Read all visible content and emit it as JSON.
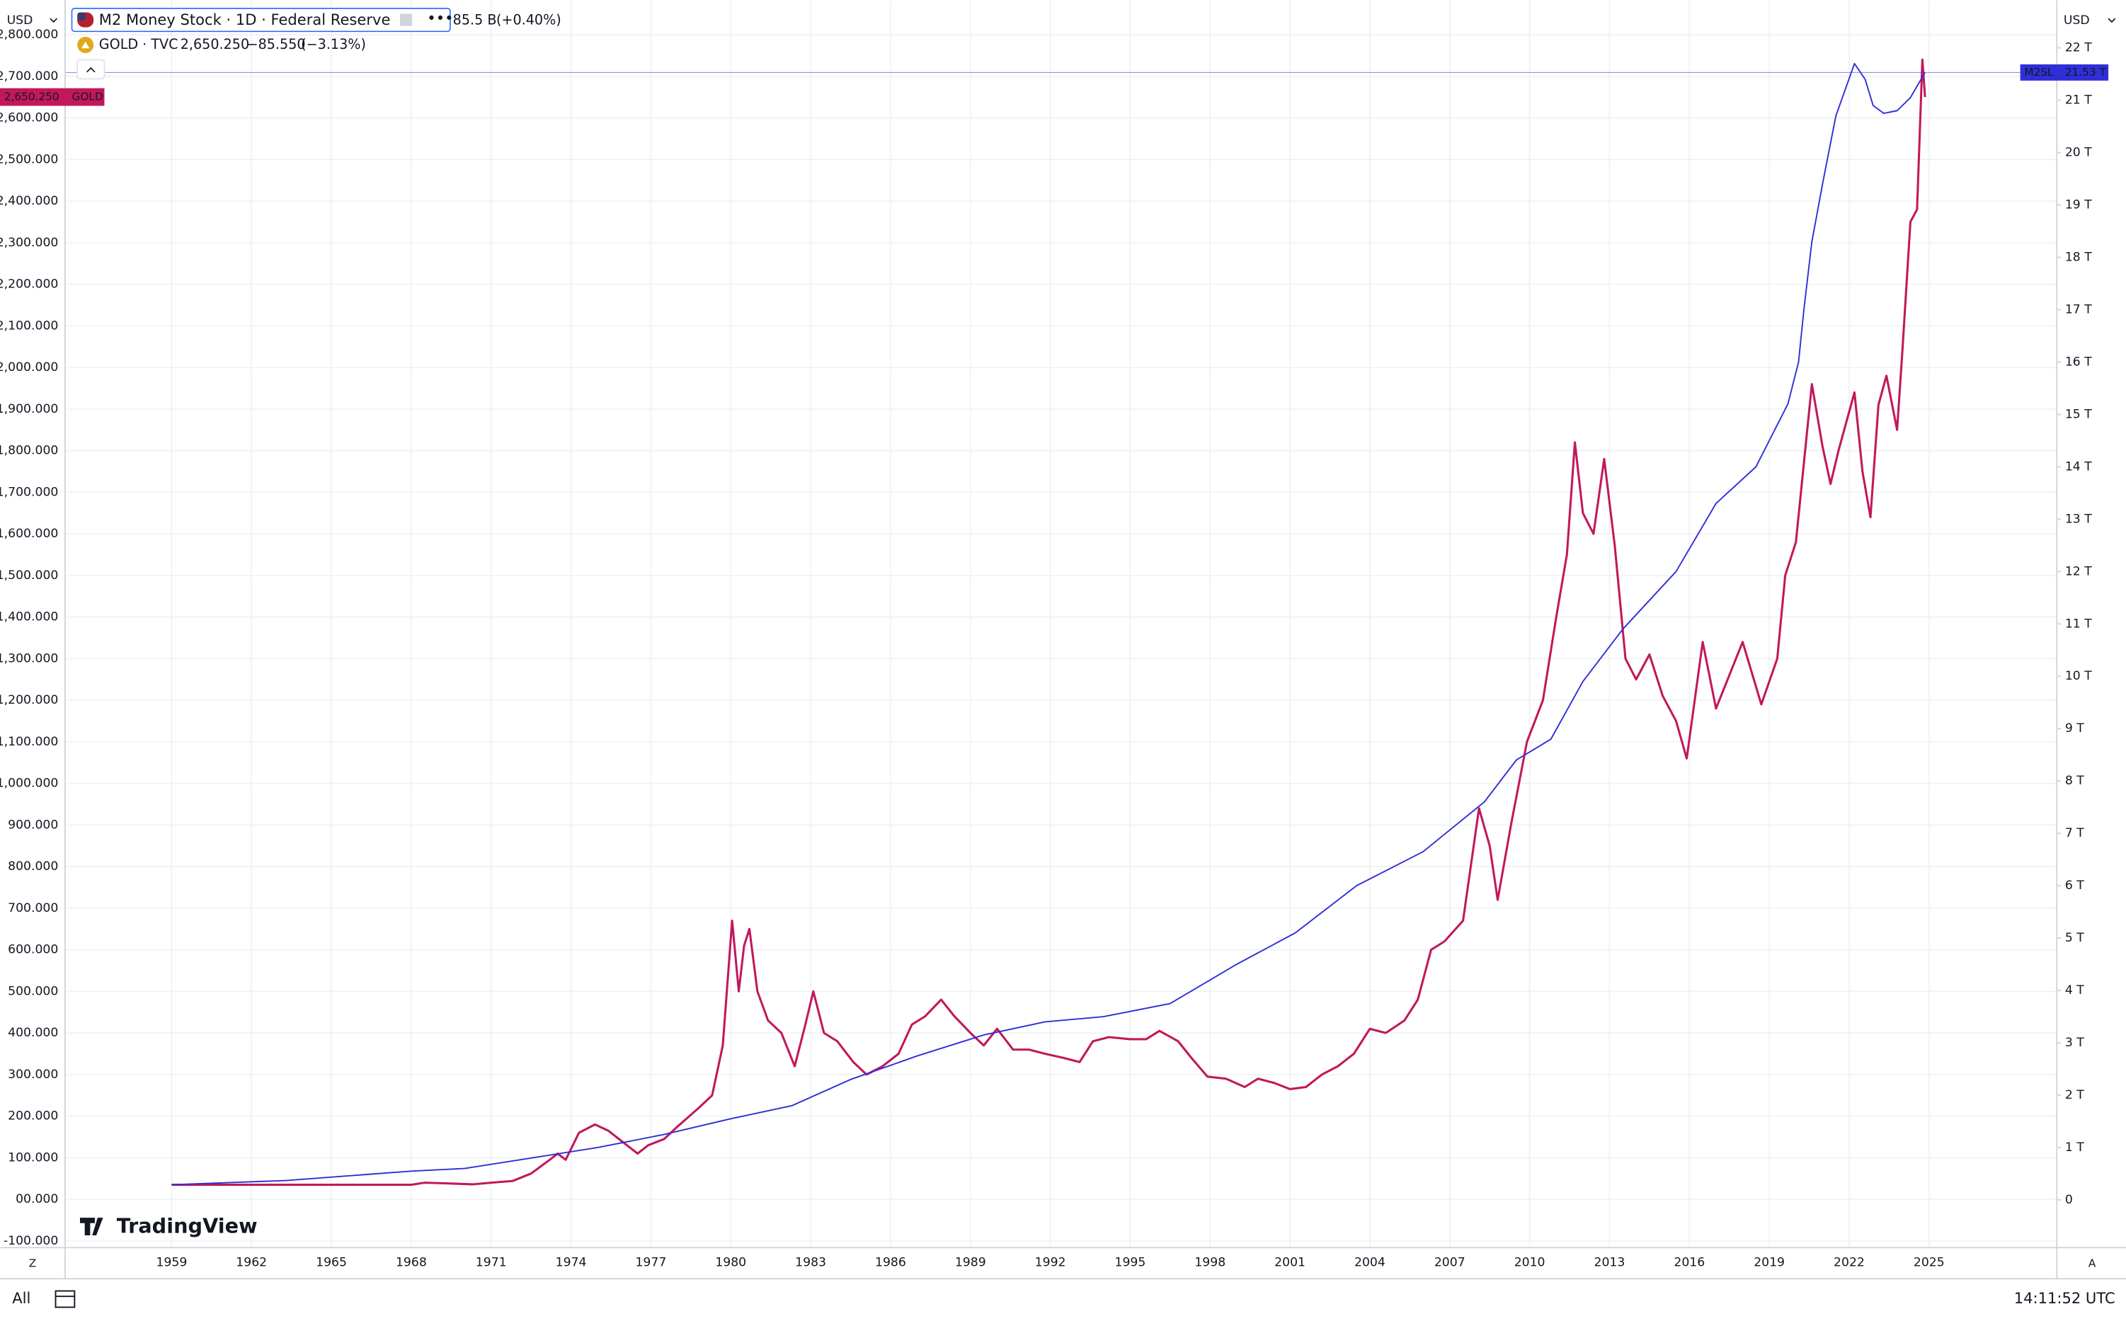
{
  "toolbar": {
    "currency_left": "USD",
    "currency_right": "USD",
    "range": "All",
    "time": "14:11:52 UTC",
    "left_scale_button": "Z",
    "right_scale_button": "A",
    "logo": "TradingView"
  },
  "chart_data": {
    "type": "line",
    "xlim": [
      1955,
      2029.8
    ],
    "xticks": [
      1959,
      1962,
      1965,
      1968,
      1971,
      1974,
      1977,
      1980,
      1983,
      1986,
      1989,
      1992,
      1995,
      1998,
      2001,
      2004,
      2007,
      2010,
      2013,
      2016,
      2019,
      2022,
      2025
    ],
    "ylim": [
      -116,
      2883
    ],
    "yticks": [
      {
        "value": -100,
        "label": "-100.000"
      },
      {
        "value": 0,
        "label": "00.000"
      },
      {
        "value": 100,
        "label": "100.000"
      },
      {
        "value": 200,
        "label": "200.000"
      },
      {
        "value": 300,
        "label": "300.000"
      },
      {
        "value": 400,
        "label": "400.000"
      },
      {
        "value": 500,
        "label": "500.000"
      },
      {
        "value": 600,
        "label": "600.000"
      },
      {
        "value": 700,
        "label": "700.000"
      },
      {
        "value": 800,
        "label": "800.000"
      },
      {
        "value": 900,
        "label": "900.000"
      },
      {
        "value": 1000,
        "label": "1,000.000"
      },
      {
        "value": 1100,
        "label": "1,100.000"
      },
      {
        "value": 1200,
        "label": "1,200.000"
      },
      {
        "value": 1300,
        "label": "1,300.000"
      },
      {
        "value": 1400,
        "label": "1,400.000"
      },
      {
        "value": 1500,
        "label": "1,500.000"
      },
      {
        "value": 1600,
        "label": "1,600.000"
      },
      {
        "value": 1700,
        "label": "1,700.000"
      },
      {
        "value": 1800,
        "label": "1,800.000"
      },
      {
        "value": 1900,
        "label": "1,900.000"
      },
      {
        "value": 2000,
        "label": "2,000.000"
      },
      {
        "value": 2100,
        "label": "2,100.000"
      },
      {
        "value": 2200,
        "label": "2,200.000"
      },
      {
        "value": 2300,
        "label": "2,300.000"
      },
      {
        "value": 2400,
        "label": "2,400.000"
      },
      {
        "value": 2500,
        "label": "2,500.000"
      },
      {
        "value": 2600,
        "label": "2,600.000"
      },
      {
        "value": 2700,
        "label": "2,700.000"
      },
      {
        "value": 2800,
        "label": "2,800.000"
      }
    ],
    "y2lim": [
      -0.91,
      22.91
    ],
    "y2ticks": [
      0,
      {
        "value": 1,
        "label": "1 T"
      },
      {
        "value": 2,
        "label": "2 T"
      },
      {
        "value": 3,
        "label": "3 T"
      },
      {
        "value": 4,
        "label": "4 T"
      },
      {
        "value": 5,
        "label": "5 T"
      },
      {
        "value": 6,
        "label": "6 T"
      },
      {
        "value": 7,
        "label": "7 T"
      },
      {
        "value": 8,
        "label": "8 T"
      },
      {
        "value": 9,
        "label": "9 T"
      },
      {
        "value": 10,
        "label": "10 T"
      },
      {
        "value": 11,
        "label": "11 T"
      },
      {
        "value": 12,
        "label": "12 T"
      },
      {
        "value": 13,
        "label": "13 T"
      },
      {
        "value": 14,
        "label": "14 T"
      },
      {
        "value": 15,
        "label": "15 T"
      },
      {
        "value": 16,
        "label": "16 T"
      },
      {
        "value": 17,
        "label": "17 T"
      },
      {
        "value": 18,
        "label": "18 T"
      },
      {
        "value": 19,
        "label": "19 T"
      },
      {
        "value": 20,
        "label": "20 T"
      },
      {
        "value": 21,
        "label": "21 T"
      },
      {
        "value": 22,
        "label": "22 T"
      }
    ],
    "grid": true,
    "series": [
      {
        "name": "GOLD · TVC",
        "symbol": "GOLD",
        "color": "#c2185b",
        "axis": "y",
        "last_label": "2,650.250",
        "change": "−85.550",
        "change_pct": "(−3.13%)",
        "x": [
          1959,
          1962,
          1965,
          1968,
          1968.5,
          1969.5,
          1970.3,
          1971,
          1971.8,
          1972.5,
          1973.2,
          1973.5,
          1973.8,
          1974.3,
          1974.9,
          1975.4,
          1975.9,
          1976.5,
          1976.9,
          1977.5,
          1978,
          1978.8,
          1979.3,
          1979.7,
          1980.05,
          1980.3,
          1980.5,
          1980.7,
          1981.0,
          1981.4,
          1981.9,
          1982.4,
          1982.8,
          1983.1,
          1983.5,
          1984.0,
          1984.6,
          1985.1,
          1985.7,
          1986.3,
          1986.8,
          1987.3,
          1987.9,
          1988.4,
          1989.0,
          1989.5,
          1990.0,
          1990.6,
          1991.2,
          1991.8,
          1992.5,
          1993.1,
          1993.6,
          1994.2,
          1995.0,
          1995.6,
          1996.1,
          1996.8,
          1997.3,
          1997.9,
          1998.6,
          1999.3,
          1999.8,
          2000.4,
          2001.0,
          2001.6,
          2002.2,
          2002.8,
          2003.4,
          2004.0,
          2004.6,
          2005.3,
          2005.8,
          2006.3,
          2006.8,
          2007.5,
          2008.1,
          2008.5,
          2008.8,
          2009.3,
          2009.9,
          2010.5,
          2011.0,
          2011.4,
          2011.7,
          2012.0,
          2012.4,
          2012.8,
          2013.2,
          2013.6,
          2014.0,
          2014.5,
          2015.0,
          2015.5,
          2015.9,
          2016.5,
          2017.0,
          2017.5,
          2018.0,
          2018.7,
          2019.3,
          2019.6,
          2020.0,
          2020.6,
          2021.0,
          2021.3,
          2021.6,
          2022.2,
          2022.5,
          2022.8,
          2023.1,
          2023.4,
          2023.8,
          2024.0,
          2024.3,
          2024.55,
          2024.75,
          2024.85
        ],
        "values": [
          35,
          35,
          35,
          35,
          40,
          38,
          36,
          40,
          44,
          62,
          95,
          110,
          95,
          160,
          180,
          165,
          140,
          110,
          130,
          145,
          175,
          220,
          250,
          370,
          670,
          500,
          610,
          650,
          500,
          430,
          400,
          320,
          420,
          500,
          400,
          380,
          330,
          300,
          320,
          350,
          420,
          440,
          480,
          440,
          400,
          370,
          410,
          360,
          360,
          350,
          340,
          330,
          380,
          390,
          385,
          385,
          405,
          380,
          340,
          295,
          290,
          270,
          290,
          280,
          265,
          270,
          300,
          320,
          350,
          410,
          400,
          430,
          480,
          600,
          620,
          670,
          940,
          850,
          720,
          900,
          1100,
          1200,
          1400,
          1550,
          1820,
          1650,
          1600,
          1780,
          1570,
          1300,
          1250,
          1310,
          1210,
          1150,
          1060,
          1340,
          1180,
          1260,
          1340,
          1190,
          1300,
          1500,
          1580,
          1960,
          1810,
          1720,
          1800,
          1940,
          1750,
          1640,
          1910,
          1980,
          1850,
          2040,
          2350,
          2380,
          2740,
          2650.25
        ]
      },
      {
        "name": "M2 Money Stock · 1D · Federal Reserve",
        "symbol": "M2SL",
        "color": "#2f2fd8",
        "axis": "y2",
        "last_label": "21.53 T",
        "change": "85.5 B",
        "change_pct": "(+0.40%)",
        "x": [
          1959,
          1963.3,
          1968,
          1970,
          1972.5,
          1975,
          1977.5,
          1980,
          1982.3,
          1984.5,
          1987,
          1989.5,
          1991.8,
          1994,
          1996.5,
          1999,
          2001.2,
          2003.5,
          2006,
          2008.3,
          2009.5,
          2010.8,
          2012,
          2013.5,
          2015.5,
          2017,
          2018.5,
          2019.7,
          2020.1,
          2020.3,
          2020.6,
          2021.0,
          2021.5,
          2022.2,
          2022.6,
          2022.9,
          2023.3,
          2023.8,
          2024.3,
          2024.85
        ],
        "values": [
          0.29,
          0.37,
          0.55,
          0.6,
          0.8,
          1.0,
          1.25,
          1.55,
          1.8,
          2.3,
          2.75,
          3.15,
          3.4,
          3.5,
          3.75,
          4.5,
          5.1,
          6.0,
          6.65,
          7.6,
          8.4,
          8.8,
          9.9,
          10.9,
          12.0,
          13.3,
          14.0,
          15.2,
          16.0,
          17.0,
          18.3,
          19.4,
          20.7,
          21.7,
          21.4,
          20.9,
          20.75,
          20.8,
          21.05,
          21.53
        ]
      }
    ]
  }
}
